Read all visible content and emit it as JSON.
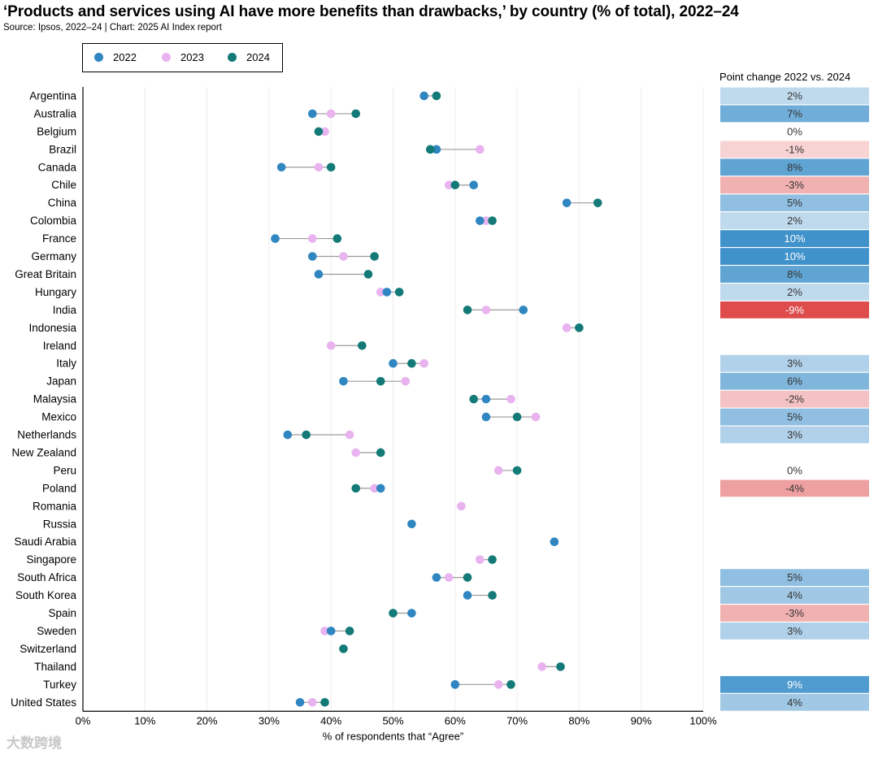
{
  "chart_data": {
    "type": "dumbbell",
    "title": "‘Products and services using AI have more benefits than drawbacks,’ by country (% of total), 2022–24",
    "subtitle": "Source: Ipsos, 2022–24 | Chart: 2025 AI Index report",
    "xlabel": "% of respondents that “Agree”",
    "xlim": [
      0,
      100
    ],
    "xticks": [
      "0%",
      "10%",
      "20%",
      "30%",
      "40%",
      "50%",
      "60%",
      "70%",
      "80%",
      "90%",
      "100%"
    ],
    "legend": [
      {
        "name": "2022",
        "color": "#2f86c1"
      },
      {
        "name": "2023",
        "color": "#e9b3f0"
      },
      {
        "name": "2024",
        "color": "#137a77"
      }
    ],
    "point_change_header": "Point change 2022 vs. 2024",
    "countries": [
      {
        "name": "Argentina",
        "v2022": 55,
        "v2023": null,
        "v2024": 57,
        "change": "2%"
      },
      {
        "name": "Australia",
        "v2022": 37,
        "v2023": 40,
        "v2024": 44,
        "change": "7%"
      },
      {
        "name": "Belgium",
        "v2022": null,
        "v2023": 39,
        "v2024": 38,
        "change": "0%"
      },
      {
        "name": "Brazil",
        "v2022": 57,
        "v2023": 64,
        "v2024": 56,
        "change": "-1%"
      },
      {
        "name": "Canada",
        "v2022": 32,
        "v2023": 38,
        "v2024": 40,
        "change": "8%"
      },
      {
        "name": "Chile",
        "v2022": 63,
        "v2023": 59,
        "v2024": 60,
        "change": "-3%"
      },
      {
        "name": "China",
        "v2022": 78,
        "v2023": null,
        "v2024": 83,
        "change": "5%"
      },
      {
        "name": "Colombia",
        "v2022": 64,
        "v2023": 65,
        "v2024": 66,
        "change": "2%"
      },
      {
        "name": "France",
        "v2022": 31,
        "v2023": 37,
        "v2024": 41,
        "change": "10%"
      },
      {
        "name": "Germany",
        "v2022": 37,
        "v2023": 42,
        "v2024": 47,
        "change": "10%"
      },
      {
        "name": "Great Britain",
        "v2022": 38,
        "v2023": null,
        "v2024": 46,
        "change": "8%"
      },
      {
        "name": "Hungary",
        "v2022": 49,
        "v2023": 48,
        "v2024": 51,
        "change": "2%"
      },
      {
        "name": "India",
        "v2022": 71,
        "v2023": 65,
        "v2024": 62,
        "change": "-9%"
      },
      {
        "name": "Indonesia",
        "v2022": null,
        "v2023": 78,
        "v2024": 80,
        "change": null
      },
      {
        "name": "Ireland",
        "v2022": null,
        "v2023": 40,
        "v2024": 45,
        "change": null
      },
      {
        "name": "Italy",
        "v2022": 50,
        "v2023": 55,
        "v2024": 53,
        "change": "3%"
      },
      {
        "name": "Japan",
        "v2022": 42,
        "v2023": 52,
        "v2024": 48,
        "change": "6%"
      },
      {
        "name": "Malaysia",
        "v2022": 65,
        "v2023": 69,
        "v2024": 63,
        "change": "-2%"
      },
      {
        "name": "Mexico",
        "v2022": 65,
        "v2023": 73,
        "v2024": 70,
        "change": "5%"
      },
      {
        "name": "Netherlands",
        "v2022": 33,
        "v2023": 43,
        "v2024": 36,
        "change": "3%"
      },
      {
        "name": "New Zealand",
        "v2022": null,
        "v2023": 44,
        "v2024": 48,
        "change": null
      },
      {
        "name": "Peru",
        "v2022": null,
        "v2023": 67,
        "v2024": 70,
        "change": "0%"
      },
      {
        "name": "Poland",
        "v2022": 48,
        "v2023": 47,
        "v2024": 44,
        "change": "-4%"
      },
      {
        "name": "Romania",
        "v2022": null,
        "v2023": 61,
        "v2024": null,
        "change": null
      },
      {
        "name": "Russia",
        "v2022": 53,
        "v2023": null,
        "v2024": null,
        "change": null
      },
      {
        "name": "Saudi Arabia",
        "v2022": 76,
        "v2023": null,
        "v2024": null,
        "change": null
      },
      {
        "name": "Singapore",
        "v2022": null,
        "v2023": 64,
        "v2024": 66,
        "change": null
      },
      {
        "name": "South Africa",
        "v2022": 57,
        "v2023": 59,
        "v2024": 62,
        "change": "5%"
      },
      {
        "name": "South Korea",
        "v2022": 62,
        "v2023": null,
        "v2024": 66,
        "change": "4%"
      },
      {
        "name": "Spain",
        "v2022": 53,
        "v2023": null,
        "v2024": 50,
        "change": "-3%"
      },
      {
        "name": "Sweden",
        "v2022": 40,
        "v2023": 39,
        "v2024": 43,
        "change": "3%"
      },
      {
        "name": "Switzerland",
        "v2022": null,
        "v2023": null,
        "v2024": 42,
        "change": null
      },
      {
        "name": "Thailand",
        "v2022": null,
        "v2023": 74,
        "v2024": 77,
        "change": null
      },
      {
        "name": "Turkey",
        "v2022": 60,
        "v2023": 67,
        "v2024": 69,
        "change": "9%"
      },
      {
        "name": "United States",
        "v2022": 35,
        "v2023": 37,
        "v2024": 39,
        "change": "4%"
      }
    ]
  },
  "watermark": "大数跨境"
}
